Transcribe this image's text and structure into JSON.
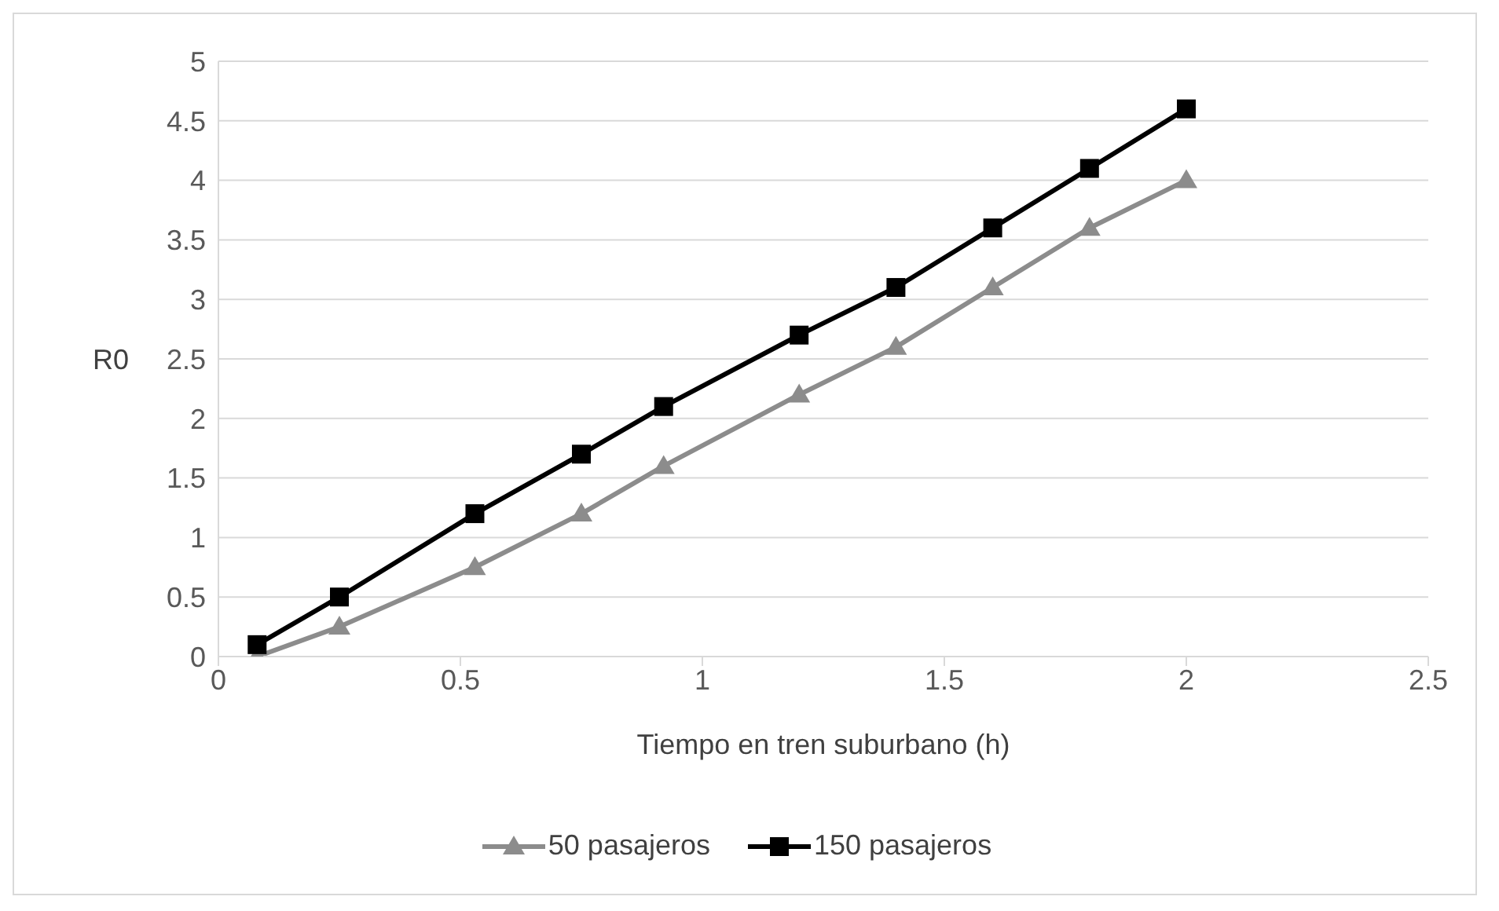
{
  "chart_data": {
    "type": "line",
    "xlabel": "Tiempo en tren suburbano (h)",
    "ylabel": "R0",
    "x": [
      0.08,
      0.25,
      0.53,
      0.75,
      0.92,
      1.2,
      1.4,
      1.6,
      1.8,
      2.0
    ],
    "series": [
      {
        "name": "50 pasajeros",
        "color": "#8c8c8c",
        "marker": "triangle",
        "values": [
          0,
          0.25,
          0.75,
          1.2,
          1.6,
          2.2,
          2.6,
          3.1,
          3.6,
          4.0
        ]
      },
      {
        "name": "150 pasajeros",
        "color": "#000000",
        "marker": "square",
        "values": [
          0.1,
          0.5,
          1.2,
          1.7,
          2.1,
          2.7,
          3.1,
          3.6,
          4.1,
          4.6
        ]
      }
    ],
    "xlim": [
      0,
      2.5
    ],
    "xticks": [
      0,
      0.5,
      1,
      1.5,
      2,
      2.5
    ],
    "ylim": [
      0,
      5
    ],
    "yticks": [
      0,
      0.5,
      1,
      1.5,
      2,
      2.5,
      3,
      3.5,
      4,
      4.5,
      5
    ],
    "grid": "y",
    "legend": "bottom",
    "line_style": "solid"
  }
}
